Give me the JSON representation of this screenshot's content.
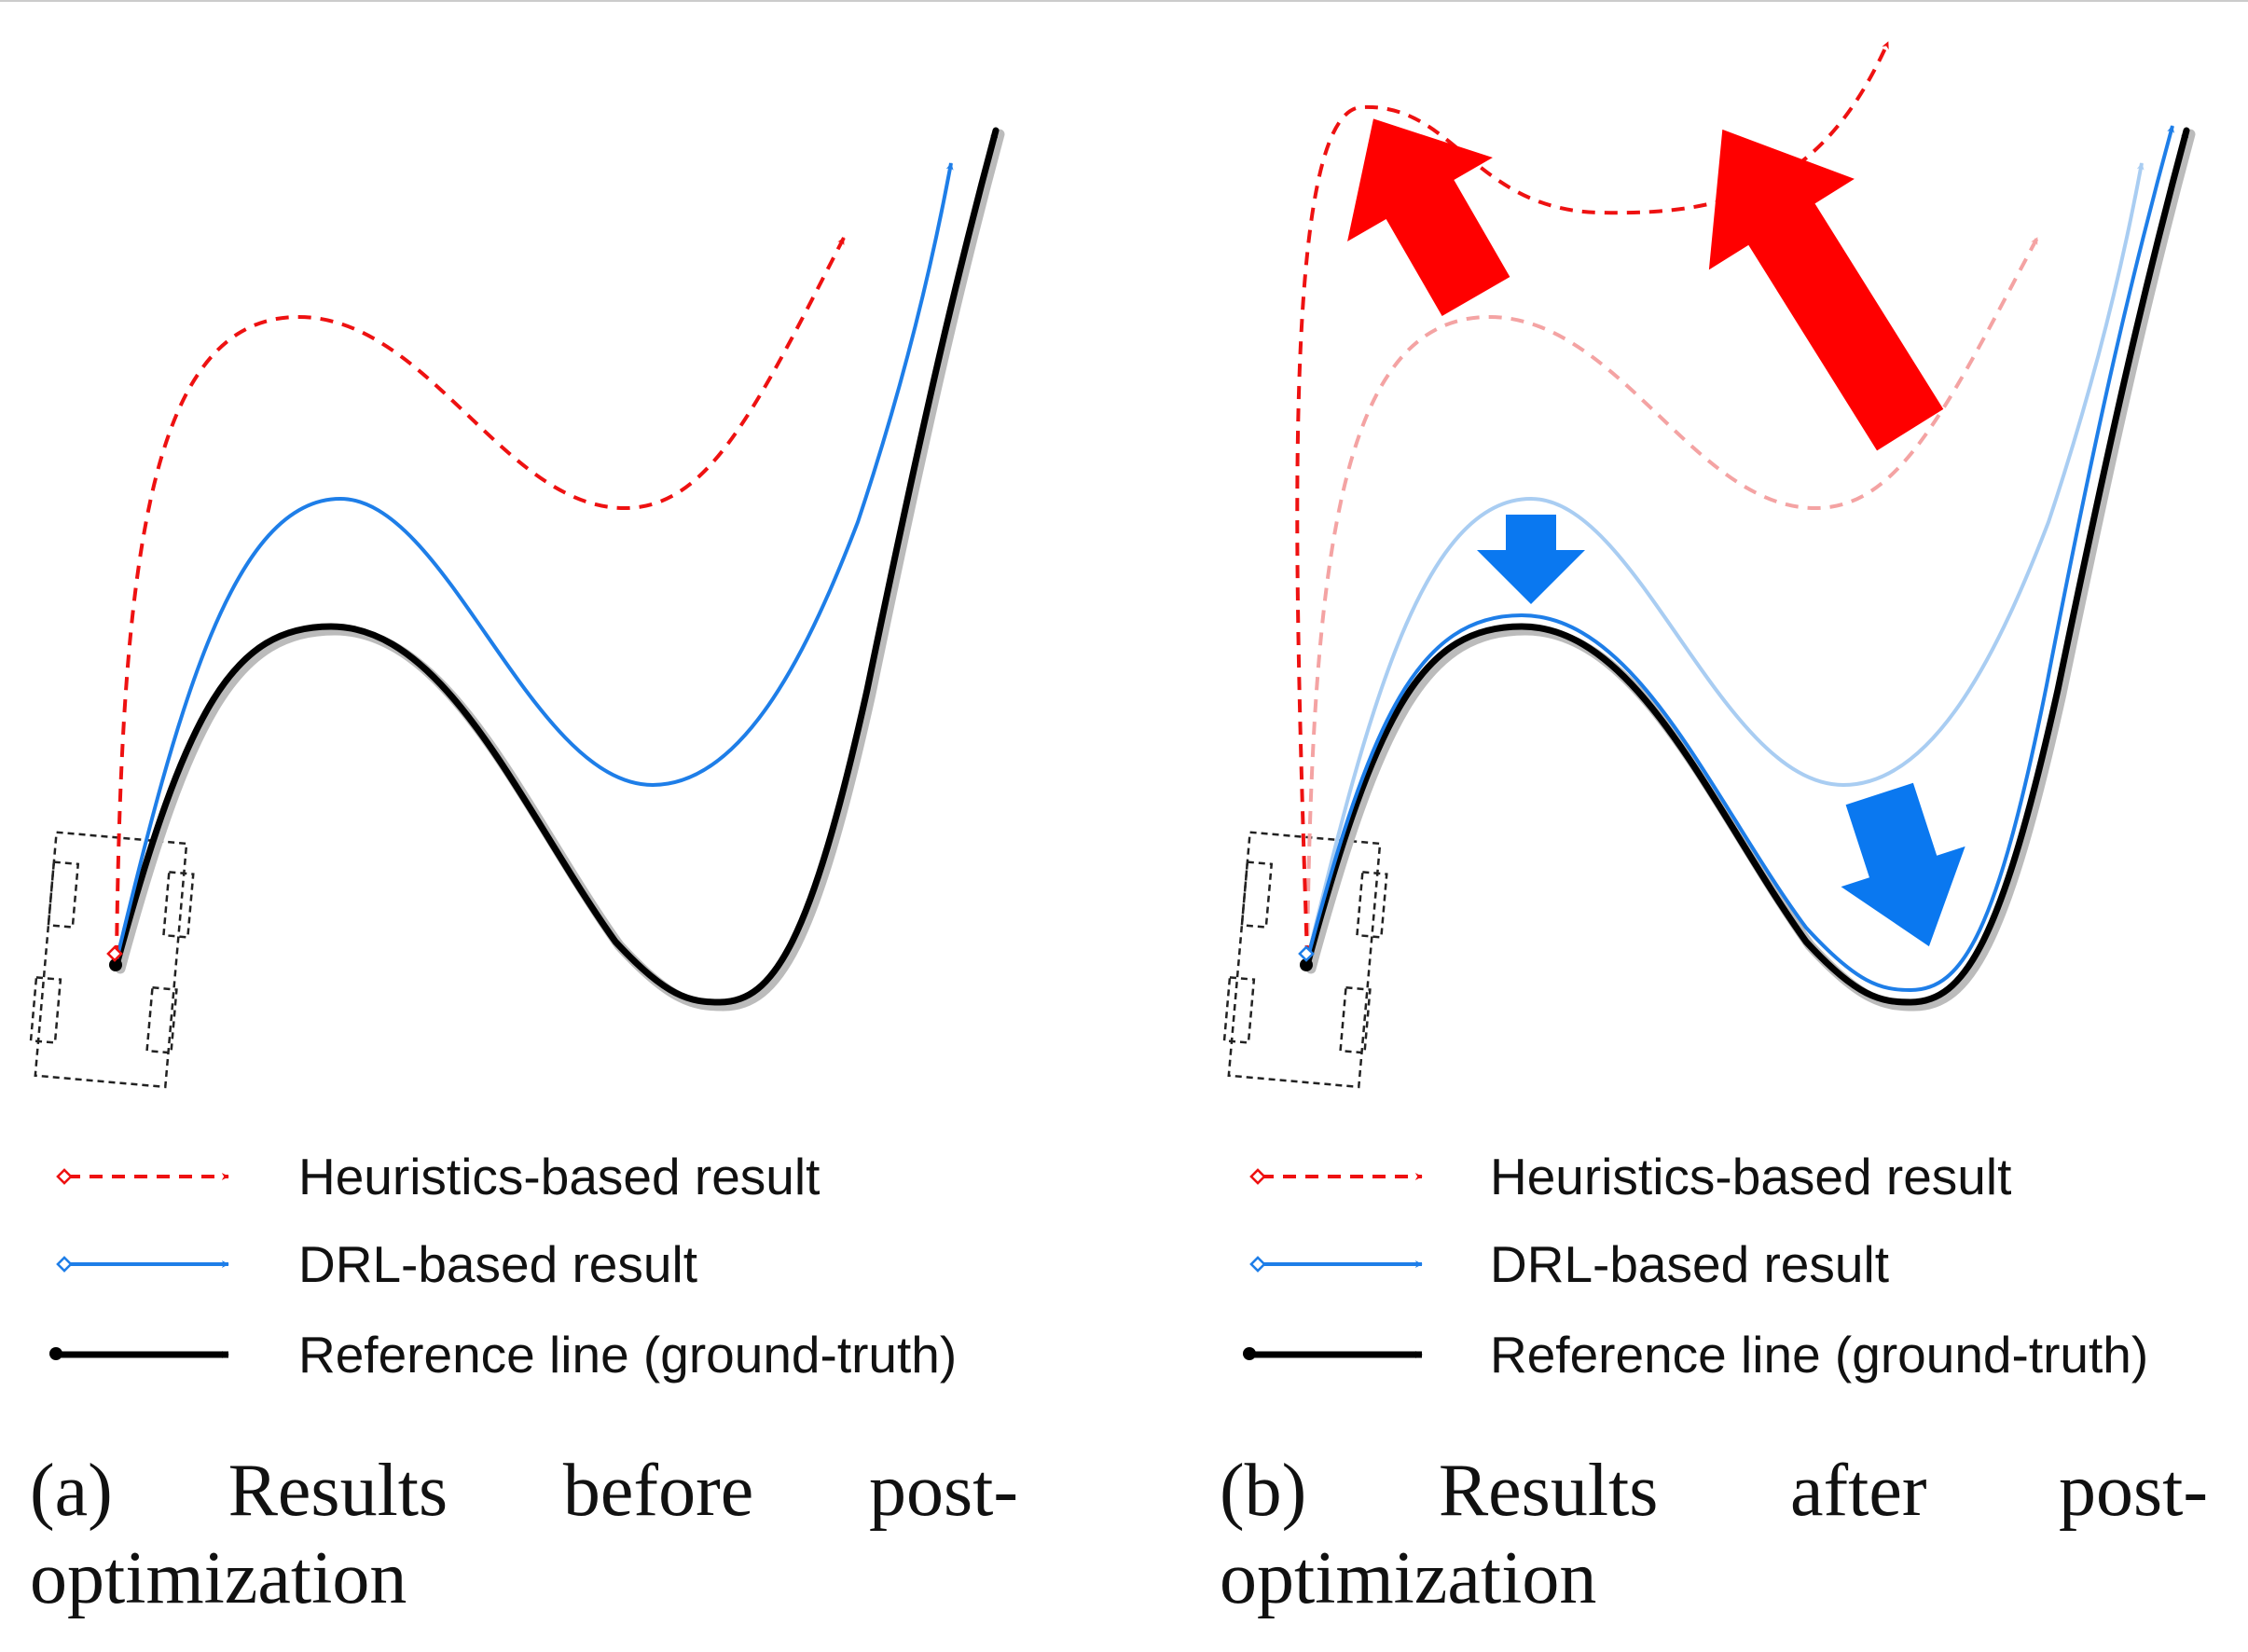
{
  "panels": [
    {
      "id": "a",
      "legend": {
        "heuristics": "Heuristics-based result",
        "drl": "DRL-based result",
        "reference": "Reference line (ground-truth)"
      },
      "caption": {
        "label": "(a)",
        "w1": "Results",
        "w2": "before",
        "w3": "post-",
        "line2": "optimization"
      }
    },
    {
      "id": "b",
      "legend": {
        "heuristics": "Heuristics-based result",
        "drl": "DRL-based result",
        "reference": "Reference line (ground-truth)"
      },
      "caption": {
        "label": "(b)",
        "w1": "Results",
        "w2": "after",
        "w3": "post-",
        "line2": "optimization"
      }
    }
  ],
  "colors": {
    "heuristics": "#ee1111",
    "heuristics_faded": "#f4a3a3",
    "drl": "#1e7ee8",
    "drl_faded": "#a9cdf2",
    "reference": "#000000",
    "big_red_arrow": "#ff0000",
    "big_blue_arrow": "#0a78f0"
  }
}
